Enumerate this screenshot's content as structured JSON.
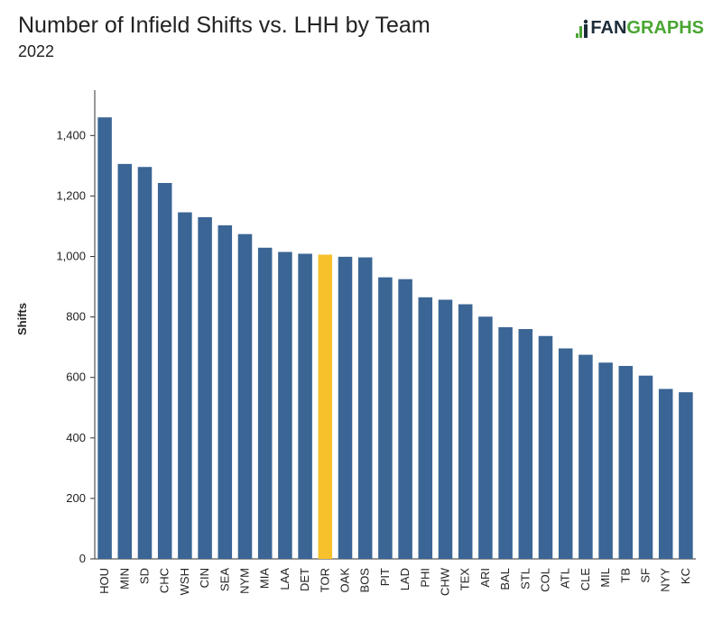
{
  "header": {
    "title": "Number of Infield Shifts vs. LHH by Team",
    "subtitle": "2022"
  },
  "logo": {
    "part1": "FAN",
    "part2": "GRAPHS",
    "icon": "fangraphs-logo-icon",
    "colors": {
      "fan": "#1d2d3a",
      "graphs": "#4aa633"
    }
  },
  "chart_data": {
    "type": "bar",
    "title": "Number of Infield Shifts vs. LHH by Team",
    "subtitle": "2022",
    "xlabel": "",
    "ylabel": "Shifts",
    "ylim": [
      0,
      1550
    ],
    "yticks": [
      0,
      200,
      400,
      600,
      800,
      1000,
      1200,
      1400
    ],
    "ytick_labels": [
      "0",
      "200",
      "400",
      "600",
      "800",
      "1,000",
      "1,200",
      "1,400"
    ],
    "grid": false,
    "categories": [
      "HOU",
      "MIN",
      "SD",
      "CHC",
      "WSH",
      "CIN",
      "SEA",
      "NYM",
      "MIA",
      "LAA",
      "DET",
      "TOR",
      "OAK",
      "BOS",
      "PIT",
      "LAD",
      "PHI",
      "CHW",
      "TEX",
      "ARI",
      "BAL",
      "STL",
      "COL",
      "ATL",
      "CLE",
      "MIL",
      "TB",
      "SF",
      "NYY",
      "KC"
    ],
    "values": [
      1460,
      1306,
      1296,
      1243,
      1146,
      1130,
      1103,
      1074,
      1029,
      1015,
      1009,
      1006,
      999,
      997,
      931,
      925,
      865,
      857,
      842,
      801,
      766,
      760,
      737,
      696,
      675,
      649,
      638,
      606,
      562,
      551
    ],
    "colors": {
      "default": "#3a6595",
      "highlight": "#f6c12a"
    },
    "highlight": "TOR"
  }
}
